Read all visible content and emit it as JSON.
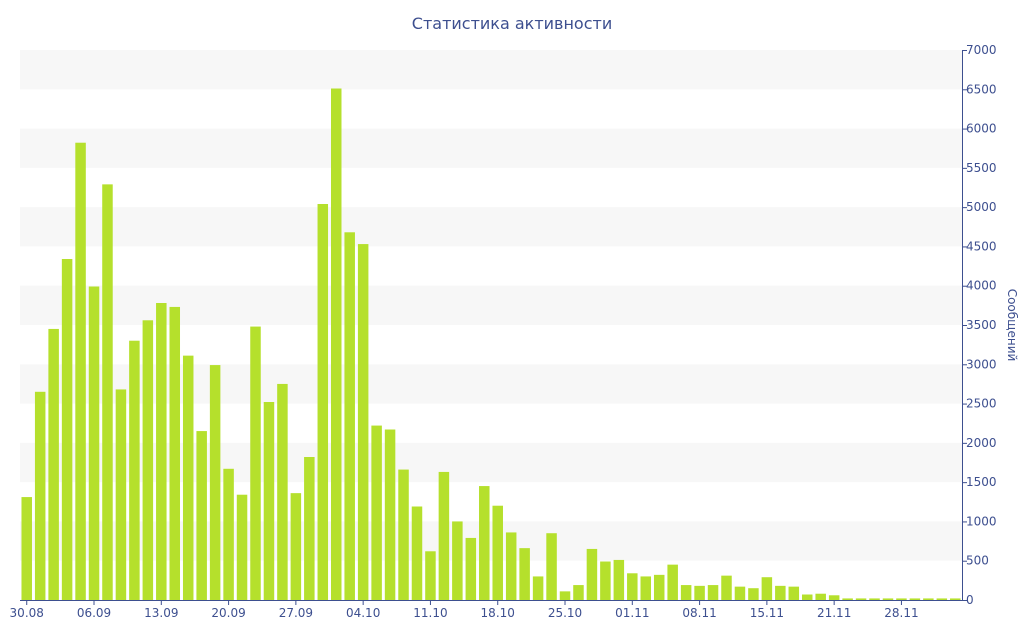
{
  "chart_data": {
    "type": "bar",
    "title": "Статистика активности",
    "ylabel": "Сообщений",
    "xlabel": "",
    "ylim": [
      0,
      7000
    ],
    "y_ticks": [
      0,
      500,
      1000,
      1500,
      2000,
      2500,
      3000,
      3500,
      4000,
      4500,
      5000,
      5500,
      6000,
      6500,
      7000
    ],
    "y_axis_side": "right",
    "grid": "alternating horizontal bands",
    "colors": {
      "bar": "#b5e02c",
      "axis": "#3d4f8f",
      "band": "#f7f7f7",
      "text": "#3d4f8f"
    },
    "x_tick_labels": [
      {
        "index": 0,
        "label": "30.08"
      },
      {
        "index": 5,
        "label": "06.09"
      },
      {
        "index": 10,
        "label": "13.09"
      },
      {
        "index": 15,
        "label": "20.09"
      },
      {
        "index": 20,
        "label": "27.09"
      },
      {
        "index": 25,
        "label": "04.10"
      },
      {
        "index": 30,
        "label": "11.10"
      },
      {
        "index": 35,
        "label": "18.10"
      },
      {
        "index": 40,
        "label": "25.10"
      },
      {
        "index": 45,
        "label": "01.11"
      },
      {
        "index": 50,
        "label": "08.11"
      },
      {
        "index": 55,
        "label": "15.11"
      },
      {
        "index": 60,
        "label": "21.11"
      },
      {
        "index": 65,
        "label": "28.11"
      }
    ],
    "values": [
      1310,
      2650,
      3450,
      4340,
      5820,
      3990,
      5290,
      2680,
      3300,
      3560,
      3780,
      3730,
      3110,
      2150,
      2990,
      1670,
      1340,
      3480,
      2520,
      2750,
      1360,
      1820,
      5040,
      6510,
      4680,
      4530,
      2220,
      2170,
      1660,
      1190,
      620,
      1630,
      1000,
      790,
      1450,
      1200,
      860,
      660,
      300,
      850,
      110,
      190,
      650,
      490,
      510,
      340,
      300,
      320,
      450,
      190,
      180,
      190,
      310,
      170,
      150,
      290,
      180,
      170,
      70,
      80,
      60,
      20,
      20,
      20,
      20,
      20,
      20,
      20,
      20,
      20
    ]
  }
}
